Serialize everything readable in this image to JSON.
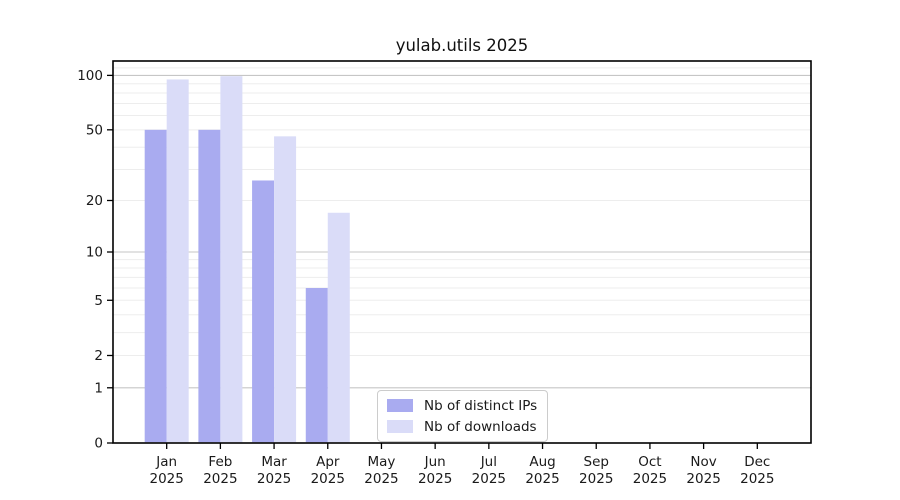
{
  "figure": {
    "title": "yulab.utils 2025"
  },
  "chart_data": {
    "type": "bar",
    "title": "yulab.utils 2025",
    "categories": [
      "Jan 2025",
      "Feb 2025",
      "Mar 2025",
      "Apr 2025",
      "May 2025",
      "Jun 2025",
      "Jul 2025",
      "Aug 2025",
      "Sep 2025",
      "Oct 2025",
      "Nov 2025",
      "Dec 2025"
    ],
    "series": [
      {
        "name": "Nb of distinct IPs",
        "color": "#a9abf0",
        "values": [
          50,
          50,
          26,
          6,
          null,
          null,
          null,
          null,
          null,
          null,
          null,
          null
        ]
      },
      {
        "name": "Nb of downloads",
        "color": "#dadcf8",
        "values": [
          95,
          99,
          46,
          17,
          null,
          null,
          null,
          null,
          null,
          null,
          null,
          null
        ]
      }
    ],
    "xlabel": "",
    "ylabel": "",
    "y_scale": "log1p",
    "y_ticks": [
      0,
      1,
      2,
      5,
      10,
      20,
      50,
      100
    ],
    "ylim": [
      0,
      120
    ],
    "grid": true,
    "legend_position": "bottom-center"
  },
  "colors": {
    "major_grid": "#c6c6c6",
    "minor_grid": "#ededed",
    "spine": "#000000",
    "text": "#1a1a1a",
    "legend_border": "#cccccc",
    "background": "#ffffff"
  }
}
